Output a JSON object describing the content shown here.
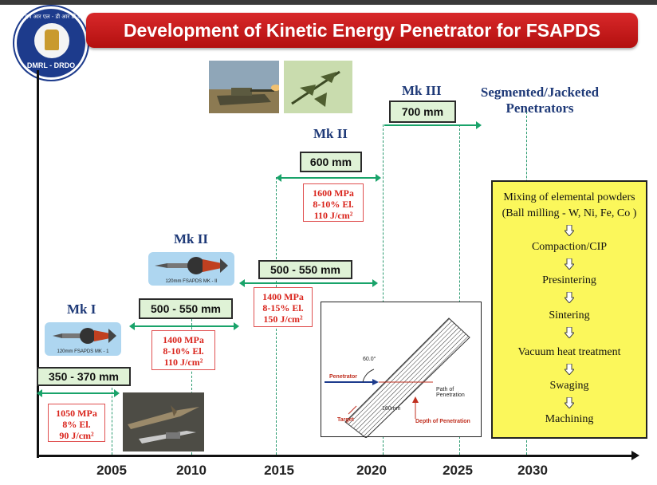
{
  "title": "Development of Kinetic Energy Penetrator for FSAPDS",
  "logo": {
    "hindi": "डी एम आर एल - डी आर डी ओ",
    "text": "DMRL - DRDO"
  },
  "timeline": {
    "years": [
      "2005",
      "2010",
      "2015",
      "2020",
      "2025",
      "2030"
    ]
  },
  "stages": [
    {
      "name": "Mk I",
      "caption": "120mm FSAPDS MK - 1",
      "penetration": "350 - 370 mm",
      "props": [
        "1050 MPa",
        "8% El.",
        "90 J/cm²"
      ]
    },
    {
      "name": "Mk II",
      "caption": "120mm FSAPDS MK - II",
      "penetration": "500 - 550 mm",
      "props": [
        "1400 MPa",
        "8-10% El.",
        "110 J/cm²"
      ]
    },
    {
      "name": "",
      "penetration": "500 - 550 mm",
      "props": [
        "1400 MPa",
        "8-15% El.",
        "150 J/cm²"
      ]
    },
    {
      "name": "Mk II",
      "penetration": "600 mm",
      "props": [
        "1600 MPa",
        "8-10% El.",
        "110 J/cm²"
      ]
    },
    {
      "name": "Mk III",
      "penetration": "700 mm"
    }
  ],
  "future": {
    "heading_line1": "Segmented/Jacketed",
    "heading_line2": "Penetrators"
  },
  "process": [
    "Mixing of elemental powders",
    "(Ball milling - W, Ni, Fe, Co )",
    "Compaction/CIP",
    "Presintering",
    "Sintering",
    "Vacuum heat treatment",
    "Swaging",
    "Machining"
  ],
  "diagram": {
    "penetrator": "Penetrator",
    "target": "Target",
    "path": "Path of Penetration",
    "depth": "Depth of Penetration",
    "width": "160mm",
    "angle": "60.0°"
  }
}
